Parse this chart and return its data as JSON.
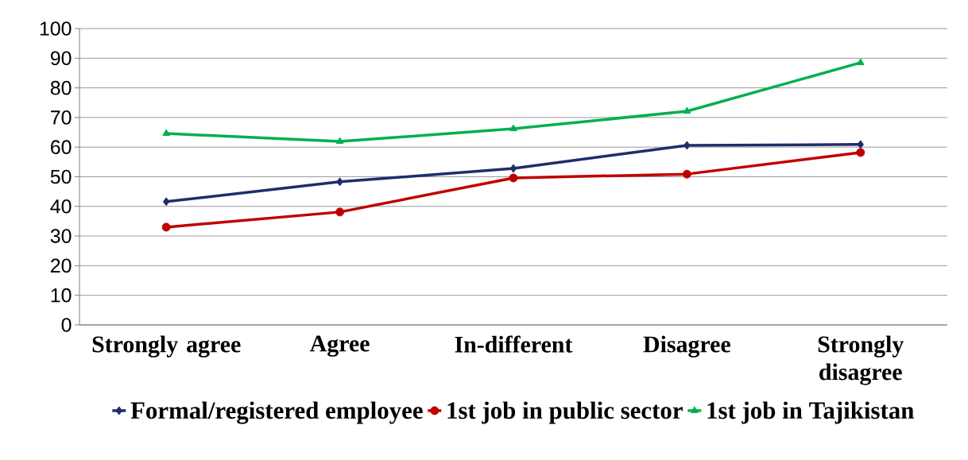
{
  "chart_data": {
    "type": "line",
    "categories": [
      "Strongly agree",
      "Agree",
      "In-different",
      "Disagree",
      "Strongly disagree"
    ],
    "series": [
      {
        "name": "Formal/registered employee",
        "color": "#1f2d6b",
        "marker": "diamond",
        "values": [
          41.6,
          48.3,
          52.8,
          60.6,
          60.9
        ]
      },
      {
        "name": "1st job in public sector",
        "color": "#c00000",
        "marker": "circle",
        "values": [
          33.0,
          38.1,
          49.6,
          50.9,
          58.2
        ]
      },
      {
        "name": "1st job in Tajikistan",
        "color": "#00b050",
        "marker": "triangle",
        "values": [
          64.6,
          61.9,
          66.2,
          72.1,
          88.5
        ]
      }
    ],
    "ylim": [
      0,
      100
    ],
    "yticks": [
      0,
      10,
      20,
      30,
      40,
      50,
      60,
      70,
      80,
      90,
      100
    ],
    "grid": "y",
    "legend": "bottom"
  }
}
